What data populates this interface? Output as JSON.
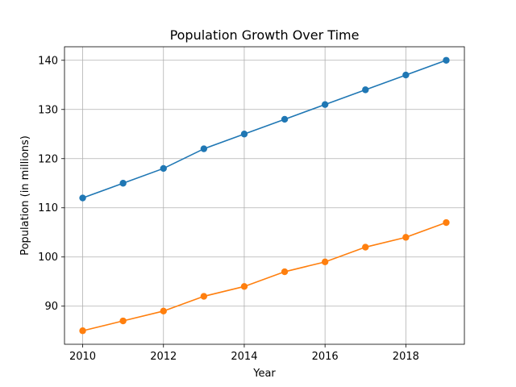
{
  "chart_data": {
    "type": "line",
    "title": "Population Growth Over Time",
    "xlabel": "Year",
    "ylabel": "Population (in millions)",
    "x": [
      2010,
      2011,
      2012,
      2013,
      2014,
      2015,
      2016,
      2017,
      2018,
      2019
    ],
    "series": [
      {
        "values": [
          112,
          115,
          118,
          122,
          125,
          128,
          131,
          134,
          137,
          140
        ],
        "color": "#1f77b4",
        "marker": "circle"
      },
      {
        "values": [
          85,
          87,
          89,
          92,
          94,
          97,
          99,
          102,
          104,
          107
        ],
        "color": "#ff7f0e",
        "marker": "circle"
      }
    ],
    "xlim": [
      2009.55,
      2019.45
    ],
    "ylim": [
      82.25,
      142.75
    ],
    "xticks": [
      2010,
      2012,
      2014,
      2016,
      2018
    ],
    "yticks": [
      90,
      100,
      110,
      120,
      130,
      140
    ],
    "grid": true,
    "legend": "none"
  }
}
